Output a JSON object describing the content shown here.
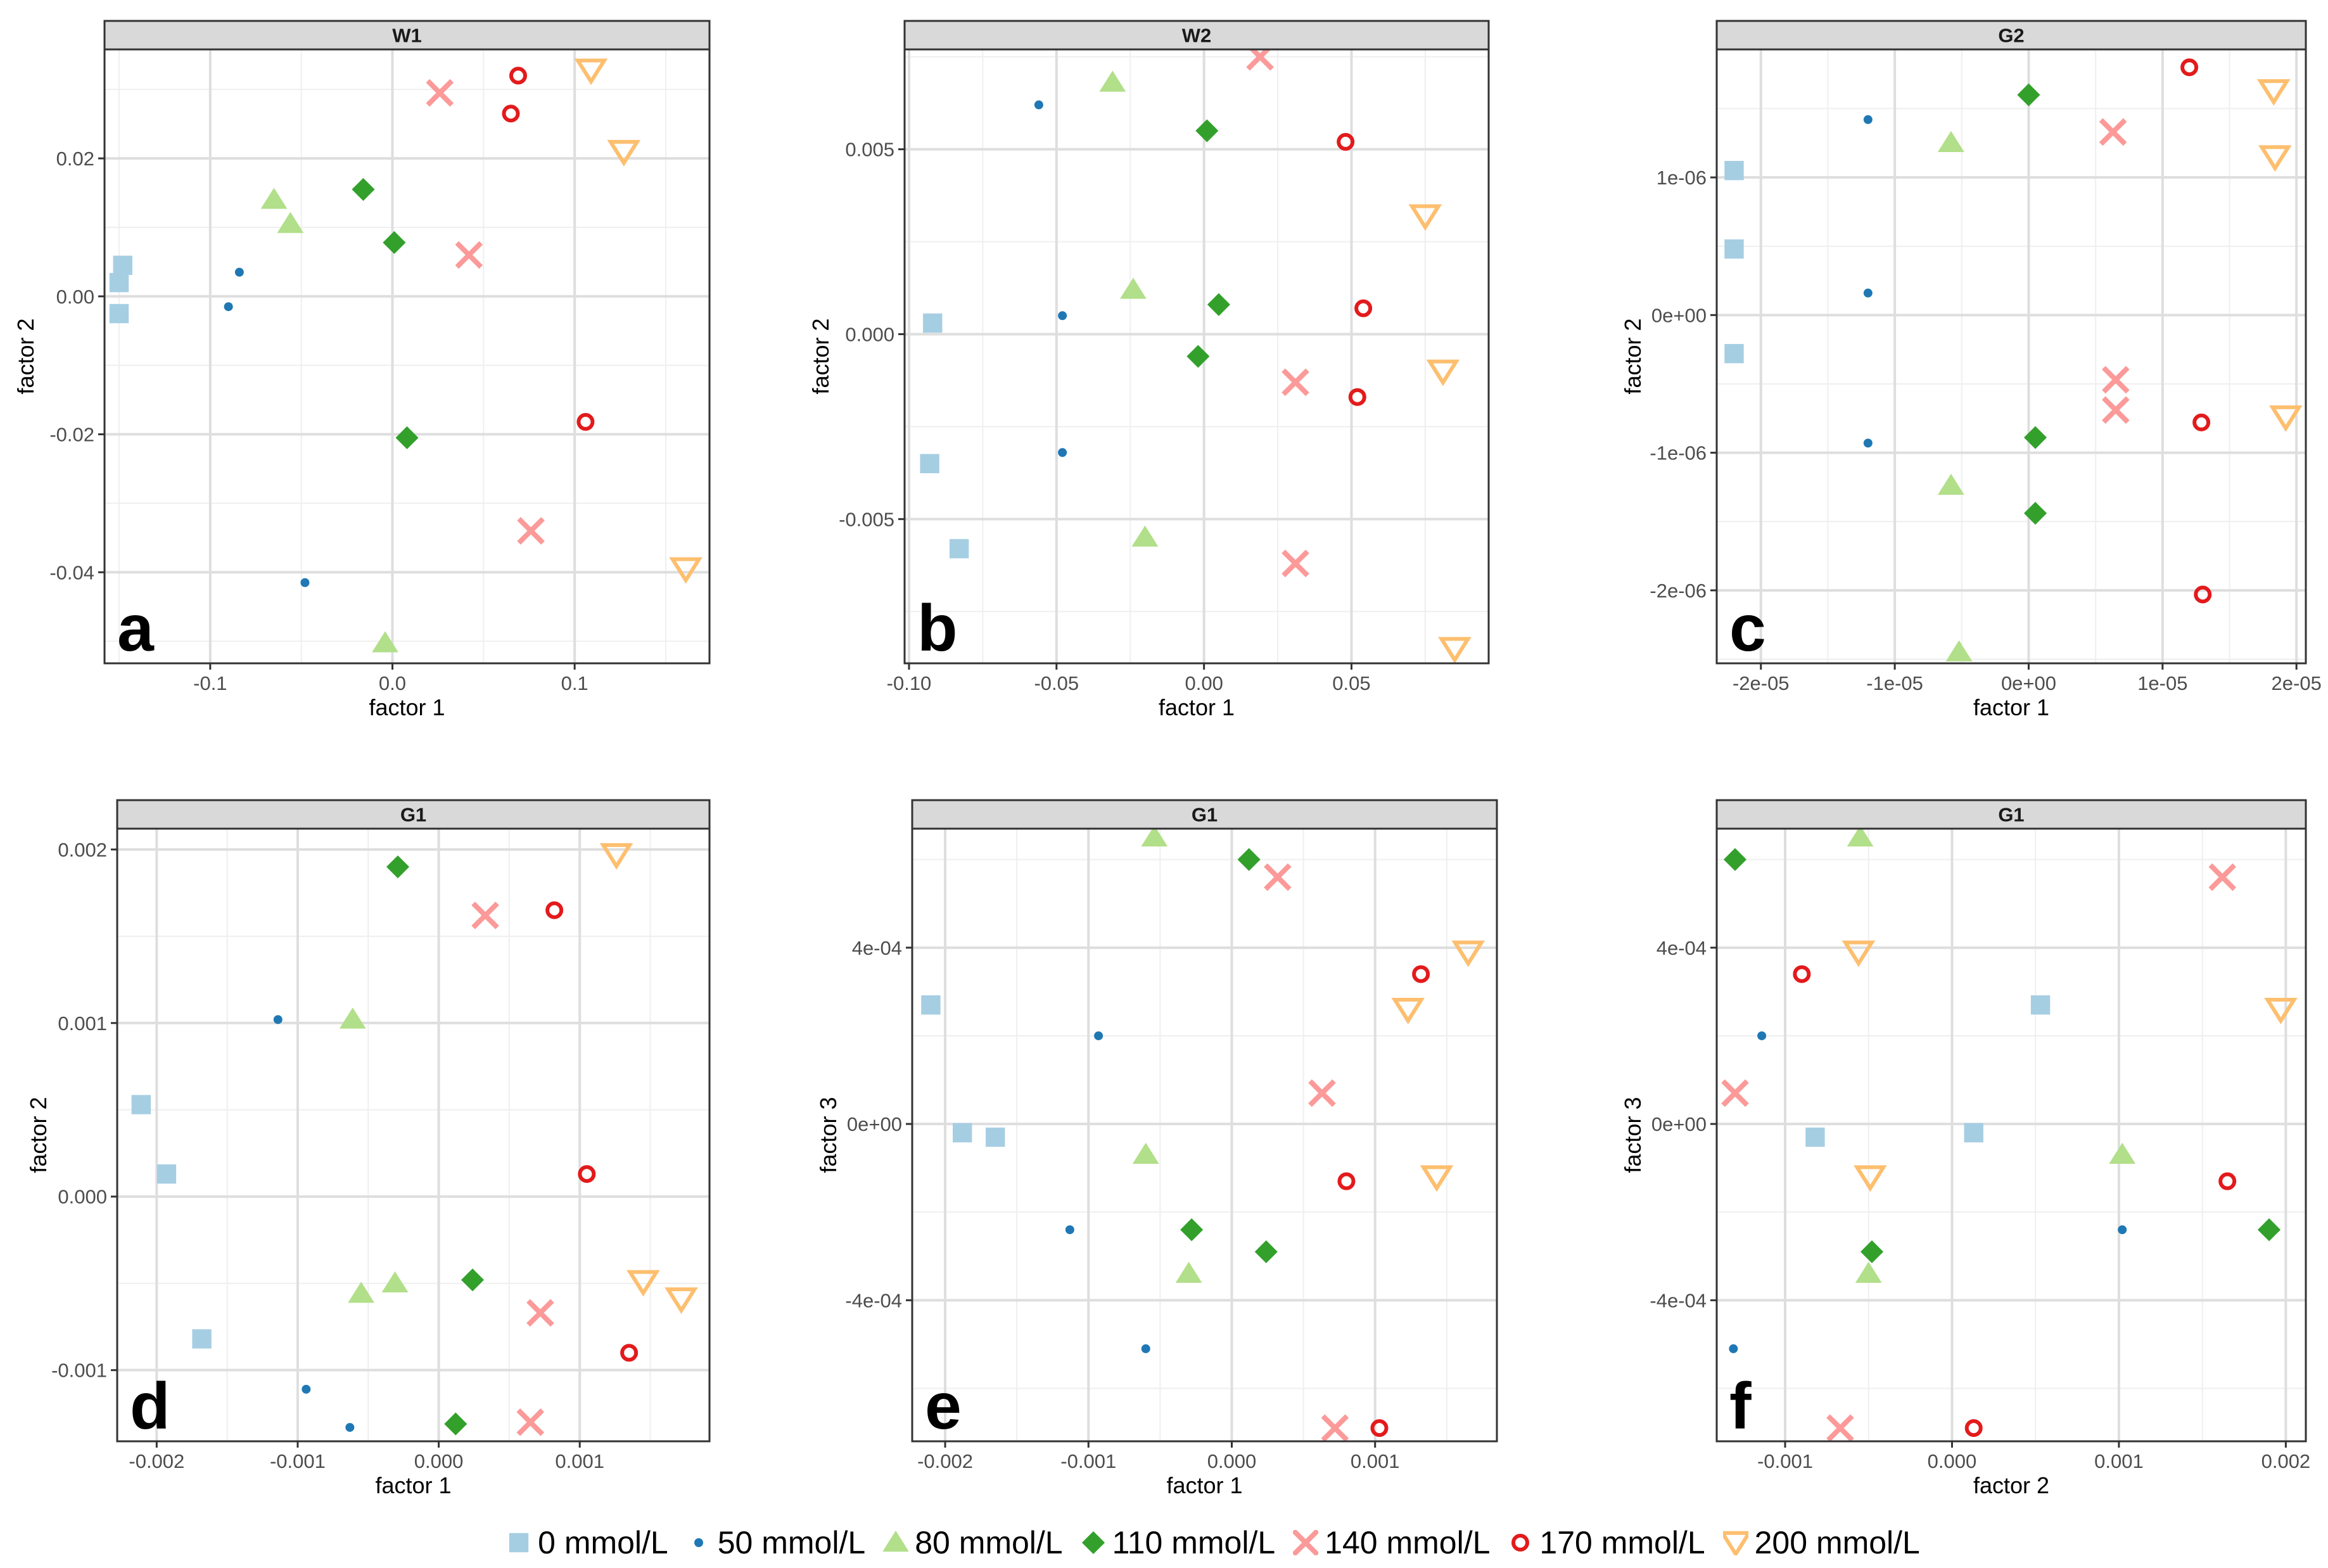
{
  "chart_data": [
    {
      "type": "scatter",
      "strip": "W1",
      "tag": "a",
      "xlabel": "factor 1",
      "ylabel": "factor 2",
      "xlim": [
        -0.158,
        0.174
      ],
      "ylim": [
        -0.0532,
        0.0358
      ],
      "xticks": [
        -0.1,
        0.0,
        0.1
      ],
      "xtick_labels": [
        "-0.1",
        "0.0",
        "0.1"
      ],
      "yticks": [
        -0.04,
        -0.02,
        0.0,
        0.02
      ],
      "ytick_labels": [
        "-0.04",
        "-0.02",
        "0.00",
        "0.02"
      ],
      "series": [
        {
          "key": "s0",
          "points": [
            [
              -0.148,
              0.0045
            ],
            [
              -0.15,
              0.002
            ],
            [
              -0.15,
              -0.0025
            ]
          ]
        },
        {
          "key": "s50",
          "points": [
            [
              -0.084,
              0.0035
            ],
            [
              -0.09,
              -0.0015
            ],
            [
              -0.048,
              -0.0415
            ]
          ]
        },
        {
          "key": "s80",
          "points": [
            [
              -0.065,
              0.014
            ],
            [
              -0.056,
              0.0105
            ],
            [
              -0.004,
              -0.0503
            ]
          ]
        },
        {
          "key": "s110",
          "points": [
            [
              -0.016,
              0.0155
            ],
            [
              0.001,
              0.0078
            ],
            [
              0.008,
              -0.0205
            ]
          ]
        },
        {
          "key": "s140",
          "points": [
            [
              0.026,
              0.0295
            ],
            [
              0.042,
              0.006
            ],
            [
              0.076,
              -0.034
            ]
          ]
        },
        {
          "key": "s170",
          "points": [
            [
              0.069,
              0.032
            ],
            [
              0.065,
              0.0265
            ],
            [
              0.106,
              -0.0182
            ]
          ]
        },
        {
          "key": "s200",
          "points": [
            [
              0.109,
              0.0328
            ],
            [
              0.127,
              0.021
            ],
            [
              0.161,
              -0.0395
            ]
          ]
        }
      ]
    },
    {
      "type": "scatter",
      "strip": "W2",
      "tag": "b",
      "xlabel": "factor 1",
      "ylabel": "factor 2",
      "xlim": [
        -0.1015,
        0.0965
      ],
      "ylim": [
        -0.0089,
        0.0077
      ],
      "xticks": [
        -0.1,
        -0.05,
        0.0,
        0.05
      ],
      "xtick_labels": [
        "-0.10",
        "-0.05",
        "0.00",
        "0.05"
      ],
      "yticks": [
        -0.005,
        0.0,
        0.005
      ],
      "ytick_labels": [
        "-0.005",
        "0.000",
        "0.005"
      ],
      "series": [
        {
          "key": "s0",
          "points": [
            [
              -0.092,
              0.0003
            ],
            [
              -0.093,
              -0.0035
            ],
            [
              -0.083,
              -0.0058
            ]
          ]
        },
        {
          "key": "s50",
          "points": [
            [
              -0.056,
              0.0062
            ],
            [
              -0.048,
              0.0005
            ],
            [
              -0.048,
              -0.0032
            ]
          ]
        },
        {
          "key": "s80",
          "points": [
            [
              -0.031,
              0.0068
            ],
            [
              -0.024,
              0.0012
            ],
            [
              -0.02,
              -0.0055
            ]
          ]
        },
        {
          "key": "s110",
          "points": [
            [
              0.001,
              0.0055
            ],
            [
              0.005,
              0.0008
            ],
            [
              -0.002,
              -0.0006
            ]
          ]
        },
        {
          "key": "s140",
          "points": [
            [
              0.019,
              0.0075
            ],
            [
              0.031,
              -0.0013
            ],
            [
              0.031,
              -0.0062
            ]
          ]
        },
        {
          "key": "s170",
          "points": [
            [
              0.048,
              0.0052
            ],
            [
              0.054,
              0.0007
            ],
            [
              0.052,
              -0.0017
            ]
          ]
        },
        {
          "key": "s200",
          "points": [
            [
              0.075,
              0.0032
            ],
            [
              0.081,
              -0.001
            ],
            [
              0.085,
              -0.0085
            ]
          ]
        }
      ]
    },
    {
      "type": "scatter",
      "strip": "G2",
      "tag": "c",
      "xlabel": "factor 1",
      "ylabel": "factor 2",
      "xlim": [
        -2.33e-05,
        2.07e-05
      ],
      "ylim": [
        -2.53e-06,
        1.93e-06
      ],
      "xticks": [
        -2e-05,
        -1e-05,
        0.0,
        1e-05,
        2e-05
      ],
      "xtick_labels": [
        "-2e-05",
        "-1e-05",
        "0e+00",
        "1e-05",
        "2e-05"
      ],
      "yticks": [
        -2e-06,
        -1e-06,
        0.0,
        1e-06
      ],
      "ytick_labels": [
        "-2e-06",
        "-1e-06",
        "0e+00",
        "1e-06"
      ],
      "series": [
        {
          "key": "s0",
          "points": [
            [
              -2.2e-05,
              1.05e-06
            ],
            [
              -2.2e-05,
              4.8e-07
            ],
            [
              -2.2e-05,
              -2.8e-07
            ]
          ]
        },
        {
          "key": "s50",
          "points": [
            [
              -1.2e-05,
              1.42e-06
            ],
            [
              -1.2e-05,
              1.6e-07
            ],
            [
              -1.2e-05,
              -9.3e-07
            ]
          ]
        },
        {
          "key": "s80",
          "points": [
            [
              -5.8e-06,
              1.25e-06
            ],
            [
              -5.8e-06,
              -1.24e-06
            ],
            [
              -5.2e-06,
              -2.45e-06
            ]
          ]
        },
        {
          "key": "s110",
          "points": [
            [
              0.0,
              1.6e-06
            ],
            [
              5e-07,
              -8.9e-07
            ],
            [
              5e-07,
              -1.44e-06
            ]
          ]
        },
        {
          "key": "s140",
          "points": [
            [
              6.3e-06,
              1.33e-06
            ],
            [
              6.5e-06,
              -4.7e-07
            ],
            [
              6.5e-06,
              -6.9e-07
            ]
          ]
        },
        {
          "key": "s170",
          "points": [
            [
              1.2e-05,
              1.8e-06
            ],
            [
              1.29e-05,
              -7.8e-07
            ],
            [
              1.3e-05,
              -2.03e-06
            ]
          ]
        },
        {
          "key": "s200",
          "points": [
            [
              1.83e-05,
              1.63e-06
            ],
            [
              1.84e-05,
              1.15e-06
            ],
            [
              1.92e-05,
              -7.4e-07
            ]
          ]
        }
      ]
    },
    {
      "type": "scatter",
      "strip": "G1",
      "tag": "d",
      "xlabel": "factor 1",
      "ylabel": "factor 2",
      "xlim": [
        -0.00228,
        0.00192
      ],
      "ylim": [
        -0.00141,
        0.00212
      ],
      "xticks": [
        -0.002,
        -0.001,
        0.0,
        0.001
      ],
      "xtick_labels": [
        "-0.002",
        "-0.001",
        "0.000",
        "0.001"
      ],
      "yticks": [
        -0.001,
        0.0,
        0.001,
        0.002
      ],
      "ytick_labels": [
        "-0.001",
        "0.000",
        "0.001",
        "0.002"
      ],
      "series": [
        {
          "key": "s0",
          "points": [
            [
              -0.00211,
              0.00053
            ],
            [
              -0.00193,
              0.00013
            ],
            [
              -0.00168,
              -0.00082
            ]
          ]
        },
        {
          "key": "s50",
          "points": [
            [
              -0.00114,
              0.00102
            ],
            [
              -0.00094,
              -0.00111
            ],
            [
              -0.00063,
              -0.00133
            ]
          ]
        },
        {
          "key": "s80",
          "points": [
            [
              -0.00061,
              0.00102
            ],
            [
              -0.00055,
              -0.00056
            ],
            [
              -0.00031,
              -0.0005
            ]
          ]
        },
        {
          "key": "s110",
          "points": [
            [
              -0.00029,
              0.0019
            ],
            [
              0.00024,
              -0.00048
            ],
            [
              0.00012,
              -0.00131
            ]
          ]
        },
        {
          "key": "s140",
          "points": [
            [
              0.00033,
              0.00162
            ],
            [
              0.00072,
              -0.00067
            ],
            [
              0.00065,
              -0.0013
            ]
          ]
        },
        {
          "key": "s170",
          "points": [
            [
              0.00082,
              0.00165
            ],
            [
              0.00105,
              0.00013
            ],
            [
              0.00135,
              -0.0009
            ]
          ]
        },
        {
          "key": "s200",
          "points": [
            [
              0.00126,
              0.00197
            ],
            [
              0.00145,
              -0.00049
            ],
            [
              0.00172,
              -0.00059
            ]
          ]
        }
      ]
    },
    {
      "type": "scatter",
      "strip": "G1",
      "tag": "e",
      "xlabel": "factor 1",
      "ylabel": "factor 3",
      "xlim": [
        -0.00223,
        0.00185
      ],
      "ylim": [
        -0.00072,
        0.00067
      ],
      "xticks": [
        -0.002,
        -0.001,
        0.0,
        0.001
      ],
      "xtick_labels": [
        "-0.002",
        "-0.001",
        "0.000",
        "0.001"
      ],
      "yticks": [
        -0.0004,
        0.0,
        0.0004
      ],
      "ytick_labels": [
        "-4e-04",
        "0e+00",
        "4e-04"
      ],
      "series": [
        {
          "key": "s0",
          "points": [
            [
              -0.0021,
              0.00027
            ],
            [
              -0.00188,
              -2e-05
            ],
            [
              -0.00165,
              -3e-05
            ]
          ]
        },
        {
          "key": "s50",
          "points": [
            [
              -0.00093,
              0.0002
            ],
            [
              -0.00113,
              -0.00024
            ],
            [
              -0.0006,
              -0.00051
            ]
          ]
        },
        {
          "key": "s80",
          "points": [
            [
              -0.00054,
              0.00065
            ],
            [
              -0.0006,
              -7e-05
            ],
            [
              -0.0003,
              -0.00034
            ]
          ]
        },
        {
          "key": "s110",
          "points": [
            [
              0.00012,
              0.0006
            ],
            [
              -0.00028,
              -0.00024
            ],
            [
              0.00024,
              -0.00029
            ]
          ]
        },
        {
          "key": "s140",
          "points": [
            [
              0.00032,
              0.00056
            ],
            [
              0.00063,
              7e-05
            ],
            [
              0.00072,
              -0.00069
            ]
          ]
        },
        {
          "key": "s170",
          "points": [
            [
              0.00132,
              0.00034
            ],
            [
              0.0008,
              -0.00013
            ],
            [
              0.00103,
              -0.00069
            ]
          ]
        },
        {
          "key": "s200",
          "points": [
            [
              0.00165,
              0.00039
            ],
            [
              0.00123,
              0.00026
            ],
            [
              0.00143,
              -0.00012
            ]
          ]
        }
      ]
    },
    {
      "type": "scatter",
      "strip": "G1",
      "tag": "f",
      "xlabel": "factor 2",
      "ylabel": "factor 3",
      "xlim": [
        -0.00141,
        0.00212
      ],
      "ylim": [
        -0.00072,
        0.00067
      ],
      "xticks": [
        -0.001,
        0.0,
        0.001,
        0.002
      ],
      "xtick_labels": [
        "-0.001",
        "0.000",
        "0.001",
        "0.002"
      ],
      "yticks": [
        -0.0004,
        0.0,
        0.0004
      ],
      "ytick_labels": [
        "-4e-04",
        "0e+00",
        "4e-04"
      ],
      "series": [
        {
          "key": "s0",
          "points": [
            [
              0.00053,
              0.00027
            ],
            [
              0.00013,
              -2e-05
            ],
            [
              -0.00082,
              -3e-05
            ]
          ]
        },
        {
          "key": "s50",
          "points": [
            [
              -0.00114,
              0.0002
            ],
            [
              0.00102,
              -0.00024
            ],
            [
              -0.00131,
              -0.00051
            ]
          ]
        },
        {
          "key": "s80",
          "points": [
            [
              -0.00055,
              0.00065
            ],
            [
              0.00102,
              -7e-05
            ],
            [
              -0.0005,
              -0.00034
            ]
          ]
        },
        {
          "key": "s110",
          "points": [
            [
              -0.0013,
              0.0006
            ],
            [
              -0.00048,
              -0.00029
            ],
            [
              0.0019,
              -0.00024
            ]
          ]
        },
        {
          "key": "s140",
          "points": [
            [
              0.00162,
              0.00056
            ],
            [
              -0.0013,
              7e-05
            ],
            [
              -0.00067,
              -0.00069
            ]
          ]
        },
        {
          "key": "s170",
          "points": [
            [
              -0.0009,
              0.00034
            ],
            [
              0.00165,
              -0.00013
            ],
            [
              0.00013,
              -0.00069
            ]
          ]
        },
        {
          "key": "s200",
          "points": [
            [
              -0.00056,
              0.00039
            ],
            [
              0.00197,
              0.00026
            ],
            [
              -0.00049,
              -0.00012
            ]
          ]
        }
      ]
    }
  ],
  "legend": [
    {
      "key": "s0",
      "label": "0 mmol/L",
      "shape": "square",
      "color": "#A6CEE3"
    },
    {
      "key": "s50",
      "label": "50 mmol/L",
      "shape": "dot",
      "color": "#1F78B4"
    },
    {
      "key": "s80",
      "label": "80 mmol/L",
      "shape": "triangle-up",
      "color": "#B2DF8A"
    },
    {
      "key": "s110",
      "label": "110 mmol/L",
      "shape": "diamond",
      "color": "#33A02C"
    },
    {
      "key": "s140",
      "label": "140 mmol/L",
      "shape": "cross",
      "color": "#FB9A99"
    },
    {
      "key": "s170",
      "label": "170 mmol/L",
      "shape": "circle-open",
      "color": "#E31A1C"
    },
    {
      "key": "s200",
      "label": "200 mmol/L",
      "shape": "triangle-down-open",
      "color": "#FDBF6F"
    }
  ],
  "colors": {
    "strip_fill": "#D9D9D9",
    "grid_major": "#DEDEDE",
    "grid_minor": "#EFEFEF",
    "frame": "#333333"
  }
}
